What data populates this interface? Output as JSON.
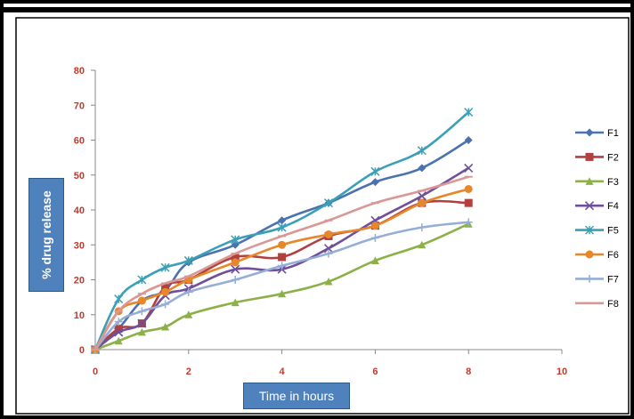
{
  "chart_data": {
    "type": "line",
    "xlabel": "Time in hours",
    "ylabel": "% drug  release",
    "xlim": [
      0,
      10
    ],
    "ylim": [
      0,
      80
    ],
    "xticks": [
      0,
      2,
      4,
      6,
      8,
      10
    ],
    "yticks": [
      0,
      10,
      20,
      30,
      40,
      50,
      60,
      70,
      80
    ],
    "grid": false,
    "legend": "right",
    "x": [
      0,
      0.5,
      1,
      1.5,
      2,
      3,
      4,
      5,
      6,
      7,
      8
    ],
    "series": [
      {
        "name": "F1",
        "color": "#4a72b0",
        "marker": "diamond",
        "values": [
          0,
          6,
          14,
          17,
          25,
          30,
          37,
          42,
          48,
          52,
          60
        ]
      },
      {
        "name": "F2",
        "color": "#b0413e",
        "marker": "square",
        "values": [
          0,
          6,
          7.5,
          18,
          20,
          26.5,
          26.5,
          32.5,
          35.5,
          42,
          42
        ]
      },
      {
        "name": "F3",
        "color": "#8db148",
        "marker": "triangle",
        "values": [
          0,
          2.5,
          5,
          6.5,
          10,
          13.5,
          16,
          19.5,
          25.5,
          30,
          36
        ]
      },
      {
        "name": "F4",
        "color": "#6f4f99",
        "marker": "x",
        "values": [
          0,
          5,
          7.5,
          15.5,
          17.5,
          23,
          23,
          29,
          37,
          44,
          52
        ]
      },
      {
        "name": "F5",
        "color": "#3aa0b8",
        "marker": "star",
        "values": [
          0,
          14.5,
          20,
          23.5,
          25.5,
          31.5,
          35,
          42,
          51,
          57,
          68
        ]
      },
      {
        "name": "F6",
        "color": "#e8862a",
        "marker": "circle",
        "values": [
          0,
          11,
          14,
          16.5,
          20,
          25,
          30,
          33,
          35.5,
          42,
          46
        ]
      },
      {
        "name": "F7",
        "color": "#94aed8",
        "marker": "plus",
        "values": [
          0,
          8,
          11,
          13,
          16.5,
          20,
          24,
          27.5,
          32,
          35,
          36.5
        ]
      },
      {
        "name": "F8",
        "color": "#d99795",
        "marker": "dash",
        "values": [
          0,
          11,
          16,
          19,
          21,
          27.5,
          32.5,
          37,
          42,
          45.5,
          49.5
        ]
      }
    ]
  }
}
